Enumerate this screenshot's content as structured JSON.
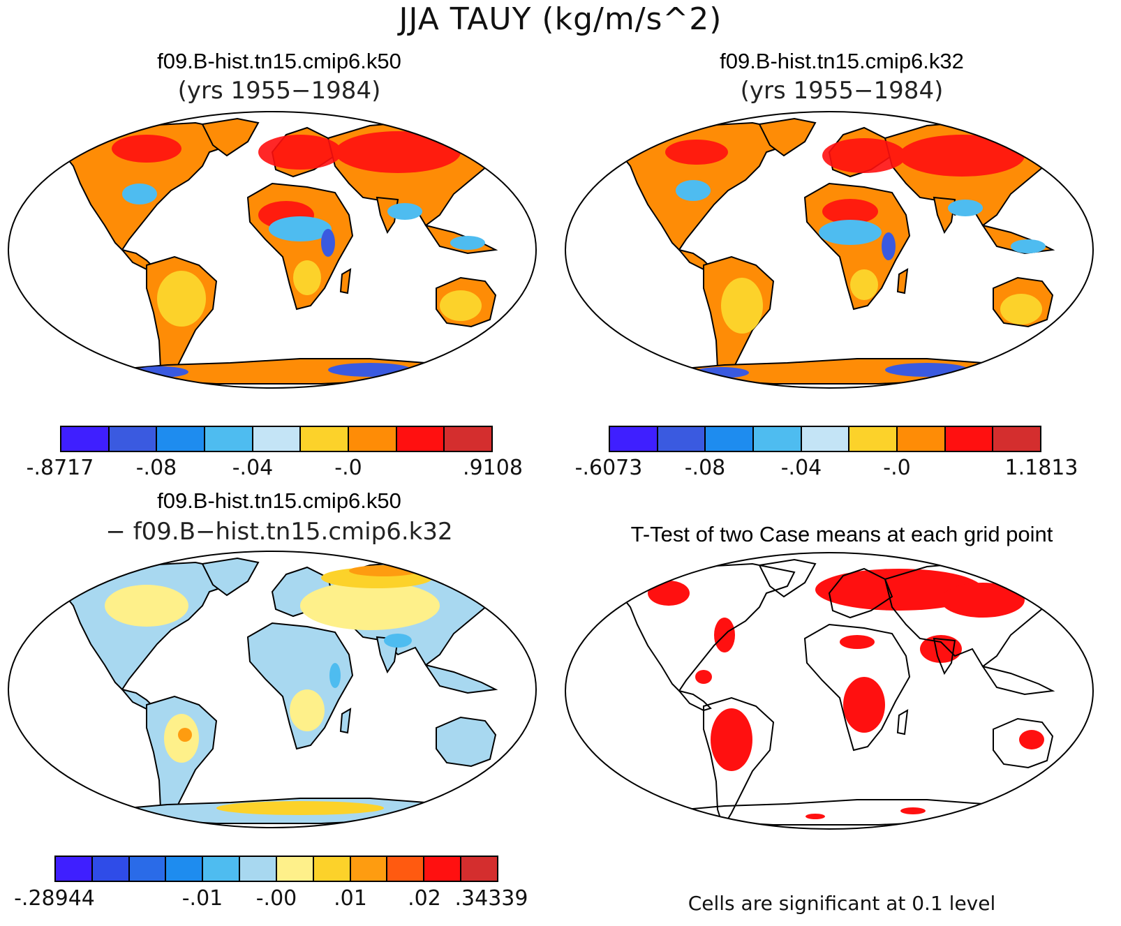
{
  "title": "JJA TAUY (kg/m/s^2)",
  "panels": [
    {
      "title": "f09.B-hist.tn15.cmip6.k50",
      "subtitle": "(yrs 1955−1984)"
    },
    {
      "title": "f09.B-hist.tn15.cmip6.k32",
      "subtitle": "(yrs 1955−1984)"
    },
    {
      "title": "f09.B-hist.tn15.cmip6.k50",
      "subtitle": "− f09.B−hist.tn15.cmip6.k32"
    },
    {
      "title": "T-Test of two Case means at each grid point",
      "subtitle": ""
    }
  ],
  "colorbars": [
    {
      "colors": [
        "#3f1fff",
        "#3a5ae0",
        "#1e8cef",
        "#4ebcf0",
        "#c4e4f6",
        "#fcd22a",
        "#fe8c06",
        "#ff1010",
        "#d42e2e"
      ],
      "labels": [
        "-.8717",
        "-.08",
        "-.04",
        "-.0",
        ".9108"
      ]
    },
    {
      "colors": [
        "#3f1fff",
        "#3a5ae0",
        "#1e8cef",
        "#4ebcf0",
        "#c4e4f6",
        "#fcd22a",
        "#fe8c06",
        "#ff1010",
        "#d42e2e"
      ],
      "labels": [
        "-.6073",
        "-.08",
        "-.04",
        "-.0",
        "1.1813"
      ]
    },
    {
      "colors": [
        "#3f1fff",
        "#2f4ce8",
        "#2a6be8",
        "#1e8cef",
        "#4ebcf0",
        "#a8d8f0",
        "#fef08a",
        "#fcd22a",
        "#fe9c10",
        "#ff5a10",
        "#ff1010",
        "#d42e2e"
      ],
      "labels": [
        "-.28944",
        "-.01",
        "-.00",
        ".01",
        ".02",
        ".34339"
      ]
    }
  ],
  "significance_note": "Cells are significant at 0.1 level",
  "colors": {
    "significant": "#ff1010",
    "outline": "#000000"
  }
}
